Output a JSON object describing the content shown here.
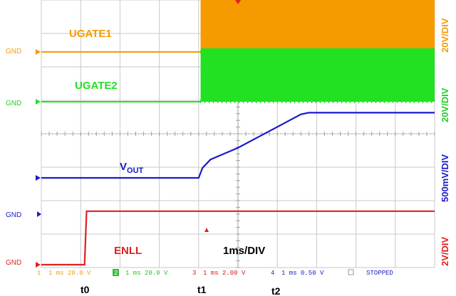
{
  "chart_data": {
    "type": "line",
    "title": "",
    "x_scale_label": "1ms/DIV",
    "time_markers": [
      "t0",
      "t1",
      "t2"
    ],
    "x_range_ms": [
      0,
      10
    ],
    "grid": true,
    "series": [
      {
        "name": "UGATE1",
        "ground_label": "GND",
        "channel": "1",
        "scale_label": "20V/DIV",
        "color": "#f59b00",
        "pattern": "switching",
        "x_ms": [
          0,
          4.05,
          4.05,
          10
        ],
        "y_div": [
          0,
          0,
          1.6,
          1.6
        ]
      },
      {
        "name": "UGATE2",
        "ground_label": "GND",
        "channel": "2",
        "scale_label": "20V/DIV",
        "color": "#22e022",
        "pattern": "switching",
        "x_ms": [
          0,
          4.05,
          4.05,
          10
        ],
        "y_div": [
          0,
          0,
          1.6,
          1.6
        ]
      },
      {
        "name": "V",
        "name_sub": "OUT",
        "ground_label": "",
        "channel": "",
        "scale_label": "500mV/DIV",
        "color": "#1a1acc",
        "pattern": "ramp",
        "x_ms": [
          0,
          4.0,
          4.1,
          4.3,
          4.6,
          5.0,
          5.8,
          6.6,
          6.8,
          10
        ],
        "y_div": [
          0,
          0,
          0.3,
          0.55,
          0.7,
          0.9,
          1.4,
          1.9,
          1.95,
          1.95
        ]
      },
      {
        "name": "ENLL",
        "ground_label": "GND",
        "channel": "3",
        "scale_label": "2V/DIV",
        "color": "#e02020",
        "pattern": "step",
        "x_ms": [
          0,
          1.1,
          1.15,
          10
        ],
        "y_div": [
          0,
          0,
          1.6,
          1.6
        ]
      },
      {
        "name": "",
        "ground_label": "GND",
        "channel": "4",
        "scale_label": "",
        "color": "#1a1acc",
        "pattern": "marker",
        "x_ms": [],
        "y_div": []
      }
    ],
    "status_bar": [
      {
        "channel": "1",
        "text": "1 ms 20.0 V",
        "color": "#e8a020"
      },
      {
        "channel": "2",
        "text": "1 ms 20.0 V",
        "color": "#30c030"
      },
      {
        "channel": "3",
        "text": "1 ms 2.00 V",
        "color": "#d02020"
      },
      {
        "channel": "4",
        "text": "1 ms 0.50 V",
        "color": "#2020c0"
      },
      {
        "channel": "",
        "text": "STOPPED",
        "color": "#2020c0"
      }
    ]
  }
}
